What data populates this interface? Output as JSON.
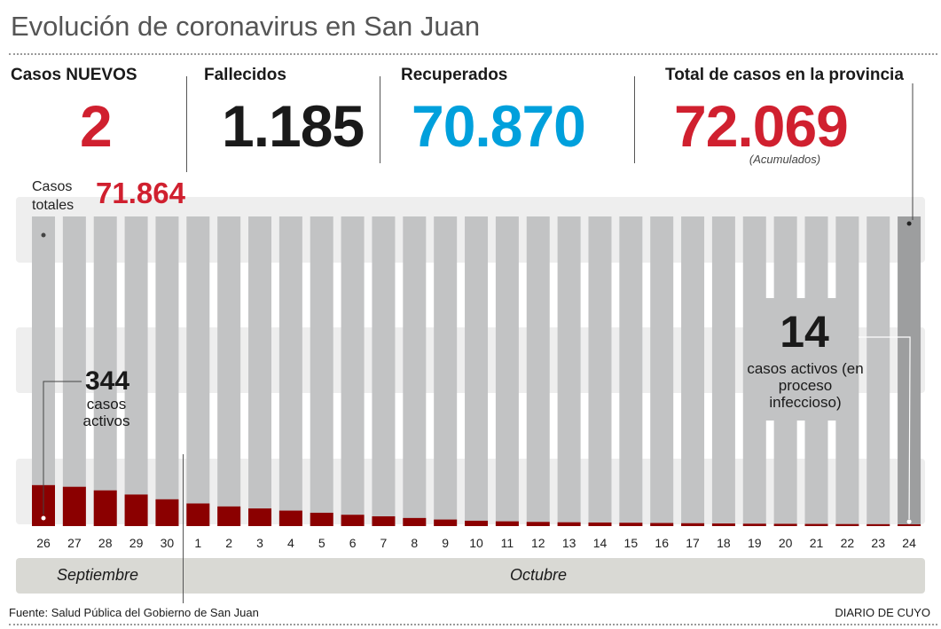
{
  "title": "Evolución de coronavirus en San Juan",
  "stats": [
    {
      "label": "Casos NUEVOS",
      "value": "2",
      "color": "#d0202f"
    },
    {
      "label": "Fallecidos",
      "value": "1.185",
      "color": "#1a1a1a"
    },
    {
      "label": "Recuperados",
      "value": "70.870",
      "color": "#00a0dc"
    },
    {
      "label": "Total de casos en la provincia",
      "value": "72.069",
      "color": "#d0202f",
      "note": "(Acumulados)"
    }
  ],
  "casos_totales": {
    "label": "Casos totales",
    "value": "71.864"
  },
  "annotations": {
    "start": {
      "number": "344",
      "text": "casos activos"
    },
    "end": {
      "number": "14",
      "text": "casos activos (en proceso infeccioso)"
    }
  },
  "months": {
    "first": "Septiembre",
    "second": "Octubre"
  },
  "footer": {
    "source": "Fuente: Salud Pública del Gobierno de San Juan",
    "brand": "DIARIO DE CUYO"
  },
  "chart_data": {
    "type": "bar",
    "title": "Evolución de coronavirus en San Juan",
    "xlabel": "",
    "ylabel": "",
    "categories": [
      "26",
      "27",
      "28",
      "29",
      "30",
      "1",
      "2",
      "3",
      "4",
      "5",
      "6",
      "7",
      "8",
      "9",
      "10",
      "11",
      "12",
      "13",
      "14",
      "15",
      "16",
      "17",
      "18",
      "19",
      "20",
      "21",
      "22",
      "23",
      "24"
    ],
    "series": [
      {
        "name": "Casos totales",
        "color": "#c2c3c4",
        "highlight_color": "#9d9e9f",
        "values": [
          71864,
          71880,
          71895,
          71910,
          71925,
          71940,
          71955,
          71970,
          71980,
          71990,
          72000,
          72008,
          72015,
          72022,
          72028,
          72033,
          72038,
          72042,
          72046,
          72050,
          72053,
          72056,
          72059,
          72061,
          72063,
          72065,
          72066,
          72068,
          72069
        ]
      },
      {
        "name": "Casos activos",
        "color": "#8b0000",
        "values": [
          344,
          330,
          300,
          265,
          225,
          190,
          165,
          148,
          130,
          112,
          95,
          82,
          68,
          55,
          45,
          40,
          35,
          32,
          30,
          28,
          26,
          24,
          22,
          20,
          19,
          18,
          17,
          16,
          14
        ]
      }
    ],
    "ylim": [
      0,
      2600
    ]
  }
}
